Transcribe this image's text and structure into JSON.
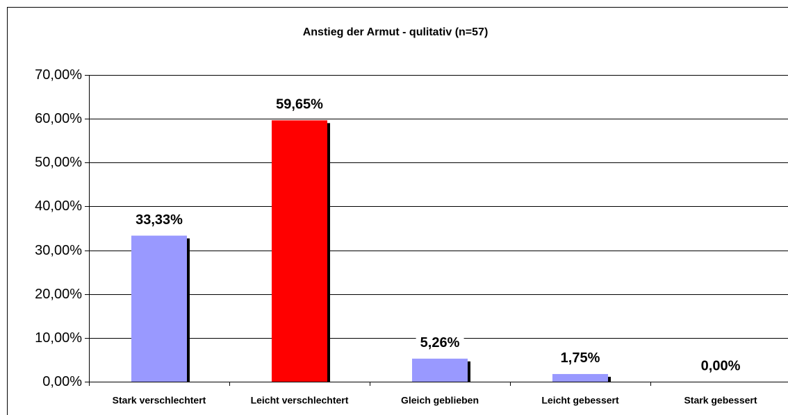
{
  "chart_data": {
    "type": "bar",
    "title": "Anstieg der Armut - qulitativ (n=57)",
    "categories": [
      "Stark verschlechtert",
      "Leicht verschlechtert",
      "Gleich geblieben",
      "Leicht gebessert",
      "Stark gebessert"
    ],
    "values": [
      33.33,
      59.65,
      5.26,
      1.75,
      0
    ],
    "value_labels": [
      "33,33%",
      "59,65%",
      "5,26%",
      "1,75%",
      "0,00%"
    ],
    "colors": [
      "#9999ff",
      "#ff0000",
      "#9999ff",
      "#9999ff",
      "#9999ff"
    ],
    "ylim": [
      0,
      70
    ],
    "yticks": [
      {
        "value": 0,
        "label": "0,00%"
      },
      {
        "value": 10,
        "label": "10,00%"
      },
      {
        "value": 20,
        "label": "20,00%"
      },
      {
        "value": 30,
        "label": "30,00%"
      },
      {
        "value": 40,
        "label": "40,00%"
      },
      {
        "value": 50,
        "label": "50,00%"
      },
      {
        "value": 60,
        "label": "60,00%"
      },
      {
        "value": 70,
        "label": "70,00%"
      }
    ],
    "grid": true
  }
}
